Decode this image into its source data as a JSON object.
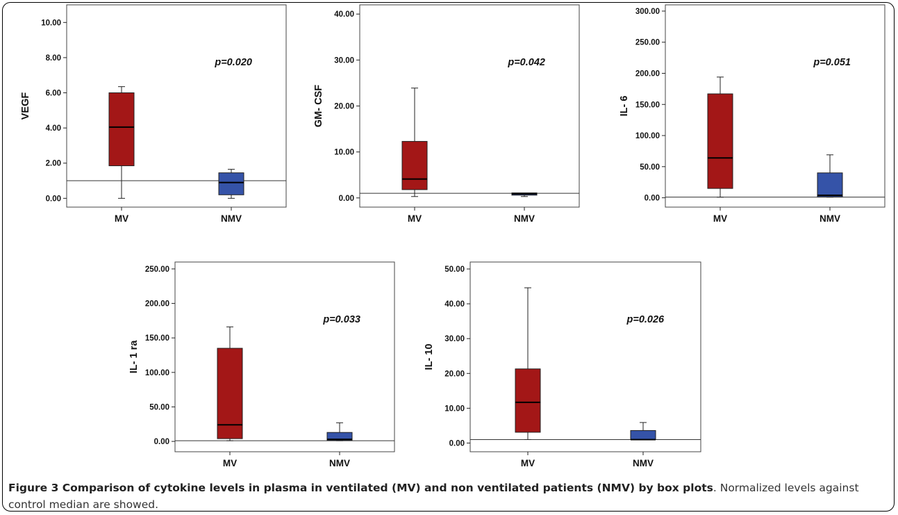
{
  "caption": {
    "title": "Figure 3 Comparison of cytokine levels in plasma in ventilated (MV) and non ventilated patients (NMV) by box plots",
    "text": ". Normalized levels against control median are showed."
  },
  "colors": {
    "mv": "#a31717",
    "nmv": "#3553a8"
  },
  "chart_data": [
    {
      "type": "box",
      "ylabel": "VEGF",
      "annotation": "p=0.020",
      "ylim": [
        -0.5,
        11
      ],
      "ticks": [
        "0.00",
        "2.00",
        "4.00",
        "6.00",
        "8.00",
        "10.00"
      ],
      "tick_values": [
        0,
        2,
        4,
        6,
        8,
        10
      ],
      "reference_line": 1.0,
      "categories": [
        "MV",
        "NMV"
      ],
      "boxes": [
        {
          "name": "MV",
          "min": 0.0,
          "q1": 1.85,
          "median": 4.05,
          "q3": 6.0,
          "max": 6.35
        },
        {
          "name": "NMV",
          "min": 0.0,
          "q1": 0.2,
          "median": 0.9,
          "q3": 1.45,
          "max": 1.65
        }
      ]
    },
    {
      "type": "box",
      "ylabel": "GM- CSF",
      "annotation": "p=0.042",
      "ylim": [
        -2,
        42
      ],
      "ticks": [
        "0.00",
        "10.00",
        "20.00",
        "30.00",
        "40.00"
      ],
      "tick_values": [
        0,
        10,
        20,
        30,
        40
      ],
      "reference_line": 1.0,
      "categories": [
        "MV",
        "NMV"
      ],
      "boxes": [
        {
          "name": "MV",
          "min": 0.3,
          "q1": 1.8,
          "median": 4.1,
          "q3": 12.3,
          "max": 23.9
        },
        {
          "name": "NMV",
          "min": 0.3,
          "q1": 0.6,
          "median": 0.9,
          "q3": 1.1,
          "max": 1.1
        }
      ]
    },
    {
      "type": "box",
      "ylabel": "IL- 6",
      "annotation": "p=0.051",
      "ylim": [
        -15,
        310
      ],
      "ticks": [
        "0.00",
        "50.00",
        "100.00",
        "150.00",
        "200.00",
        "250.00",
        "300.00"
      ],
      "tick_values": [
        0,
        50,
        100,
        150,
        200,
        250,
        300
      ],
      "reference_line": 1.0,
      "categories": [
        "MV",
        "NMV"
      ],
      "boxes": [
        {
          "name": "MV",
          "min": 1.0,
          "q1": 15.0,
          "median": 64.0,
          "q3": 167.0,
          "max": 194.0
        },
        {
          "name": "NMV",
          "min": 1.0,
          "q1": 1.5,
          "median": 4.0,
          "q3": 40.0,
          "max": 69.0
        }
      ]
    },
    {
      "type": "box",
      "ylabel": "IL- 1 ra",
      "annotation": "p=0.033",
      "ylim": [
        -15,
        260
      ],
      "ticks": [
        "0.00",
        "50.00",
        "100.00",
        "150.00",
        "200.00",
        "250.00"
      ],
      "tick_values": [
        0,
        50,
        100,
        150,
        200,
        250
      ],
      "reference_line": 1.0,
      "categories": [
        "MV",
        "NMV"
      ],
      "boxes": [
        {
          "name": "MV",
          "min": 1.0,
          "q1": 4.0,
          "median": 24.0,
          "q3": 135.0,
          "max": 166.0
        },
        {
          "name": "NMV",
          "min": 1.0,
          "q1": 1.5,
          "median": 3.0,
          "q3": 13.0,
          "max": 27.0
        }
      ]
    },
    {
      "type": "box",
      "ylabel": "IL- 10",
      "annotation": "p=0.026",
      "ylim": [
        -2.5,
        52
      ],
      "ticks": [
        "0.00",
        "10.00",
        "20.00",
        "30.00",
        "40.00",
        "50.00"
      ],
      "tick_values": [
        0,
        10,
        20,
        30,
        40,
        50
      ],
      "reference_line": 1.0,
      "categories": [
        "MV",
        "NMV"
      ],
      "boxes": [
        {
          "name": "MV",
          "min": 1.0,
          "q1": 3.1,
          "median": 11.7,
          "q3": 21.3,
          "max": 44.6
        },
        {
          "name": "NMV",
          "min": 1.0,
          "q1": 1.0,
          "median": 1.0,
          "q3": 3.6,
          "max": 5.9
        }
      ]
    }
  ]
}
